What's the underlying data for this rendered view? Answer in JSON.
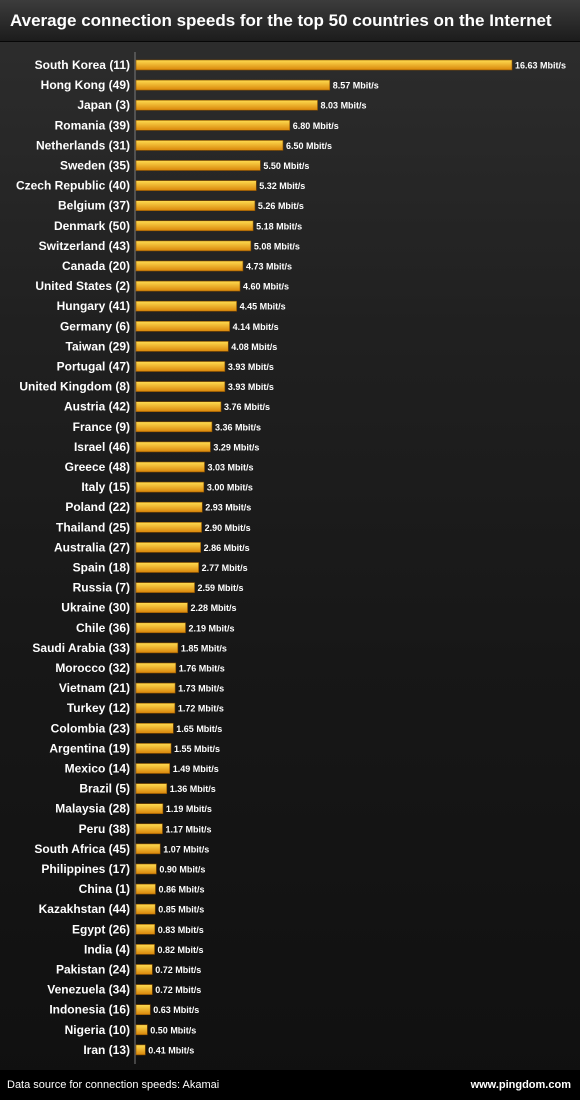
{
  "title": "Average connection speeds for the top 50 countries on the Internet",
  "footer": {
    "source": "Data source for connection speeds: Akamai",
    "site": "www.pingdom.com"
  },
  "colors": {
    "bar_top": "#ffdc50",
    "bar_bottom": "#d9860a",
    "bar_border": "#8a5000",
    "background": "#1a1a1a",
    "text": "#ffffff"
  },
  "chart_data": {
    "type": "bar",
    "orientation": "horizontal",
    "title": "Average connection speeds for the top 50 countries on the Internet",
    "categories": [
      "South Korea (11)",
      "Hong Kong (49)",
      "Japan (3)",
      "Romania (39)",
      "Netherlands (31)",
      "Sweden (35)",
      "Czech Republic (40)",
      "Belgium (37)",
      "Denmark (50)",
      "Switzerland (43)",
      "Canada (20)",
      "United States (2)",
      "Hungary (41)",
      "Germany (6)",
      "Taiwan (29)",
      "Portugal (47)",
      "United Kingdom (8)",
      "Austria (42)",
      "France (9)",
      "Israel (46)",
      "Greece (48)",
      "Italy (15)",
      "Poland (22)",
      "Thailand (25)",
      "Australia (27)",
      "Spain (18)",
      "Russia (7)",
      "Ukraine (30)",
      "Chile (36)",
      "Saudi Arabia (33)",
      "Morocco (32)",
      "Vietnam (21)",
      "Turkey (12)",
      "Colombia (23)",
      "Argentina (19)",
      "Mexico (14)",
      "Brazil (5)",
      "Malaysia (28)",
      "Peru (38)",
      "South Africa (45)",
      "Philippines (17)",
      "China (1)",
      "Kazakhstan (44)",
      "Egypt (26)",
      "India (4)",
      "Pakistan (24)",
      "Venezuela (34)",
      "Indonesia (16)",
      "Nigeria (10)",
      "Iran (13)"
    ],
    "values": [
      16.63,
      8.57,
      8.03,
      6.8,
      6.5,
      5.5,
      5.32,
      5.26,
      5.18,
      5.08,
      4.73,
      4.6,
      4.45,
      4.14,
      4.08,
      3.93,
      3.93,
      3.76,
      3.36,
      3.29,
      3.03,
      3.0,
      2.93,
      2.9,
      2.86,
      2.77,
      2.59,
      2.28,
      2.19,
      1.85,
      1.76,
      1.73,
      1.72,
      1.65,
      1.55,
      1.49,
      1.36,
      1.19,
      1.17,
      1.07,
      0.9,
      0.86,
      0.85,
      0.83,
      0.82,
      0.72,
      0.72,
      0.63,
      0.5,
      0.41
    ],
    "value_labels": [
      "16.63 Mbit/s",
      "8.57 Mbit/s",
      "8.03 Mbit/s",
      "6.80 Mbit/s",
      "6.50 Mbit/s",
      "5.50 Mbit/s",
      "5.32 Mbit/s",
      "5.26 Mbit/s",
      "5.18 Mbit/s",
      "5.08 Mbit/s",
      "4.73 Mbit/s",
      "4.60 Mbit/s",
      "4.45 Mbit/s",
      "4.14 Mbit/s",
      "4.08 Mbit/s",
      "3.93 Mbit/s",
      "3.93 Mbit/s",
      "3.76 Mbit/s",
      "3.36 Mbit/s",
      "3.29 Mbit/s",
      "3.03 Mbit/s",
      "3.00 Mbit/s",
      "2.93 Mbit/s",
      "2.90 Mbit/s",
      "2.86 Mbit/s",
      "2.77 Mbit/s",
      "2.59 Mbit/s",
      "2.28 Mbit/s",
      "2.19 Mbit/s",
      "1.85 Mbit/s",
      "1.76 Mbit/s",
      "1.73 Mbit/s",
      "1.72 Mbit/s",
      "1.65 Mbit/s",
      "1.55 Mbit/s",
      "1.49 Mbit/s",
      "1.36 Mbit/s",
      "1.19 Mbit/s",
      "1.17 Mbit/s",
      "1.07 Mbit/s",
      "0.90 Mbit/s",
      "0.86 Mbit/s",
      "0.85 Mbit/s",
      "0.83 Mbit/s",
      "0.82 Mbit/s",
      "0.72 Mbit/s",
      "0.72 Mbit/s",
      "0.63 Mbit/s",
      "0.50 Mbit/s",
      "0.41 Mbit/s"
    ],
    "xlim": [
      0,
      16.63
    ],
    "grid": false,
    "legend": "none"
  }
}
